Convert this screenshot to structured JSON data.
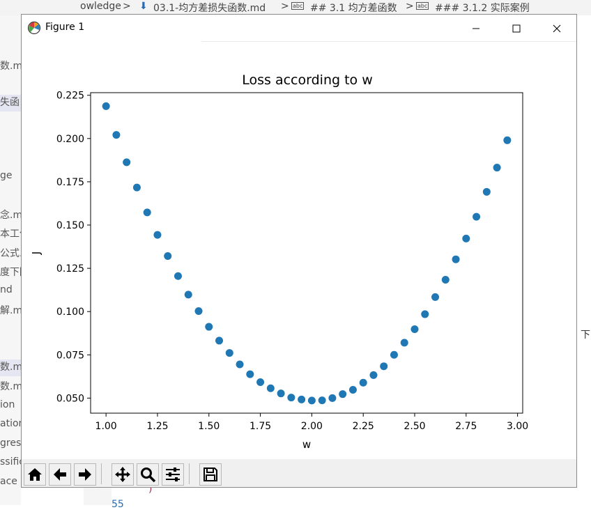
{
  "background": {
    "breadcrumb": [
      {
        "text": "owledge"
      },
      {
        "text": ">"
      },
      {
        "text": "03.1-均方差损失函数.md"
      },
      {
        "text": ">"
      },
      {
        "text": "abc"
      },
      {
        "text": "## 3.1 均方差函数"
      },
      {
        "text": ">"
      },
      {
        "text": "abc"
      },
      {
        "text": "### 3.1.2 实际案例"
      }
    ],
    "sidebar_items": [
      "数.md",
      "失函",
      "ge",
      "念.mo",
      "本工作",
      "公式.m",
      "度下降",
      "nd",
      "解.mo",
      "数.mo",
      "数.mo",
      "ion",
      "ation",
      "gress",
      "ssific",
      "ace"
    ],
    "right_fragment": "下",
    "code_line_number": "55",
    "code_fragment": ")"
  },
  "window": {
    "title": "Figure 1",
    "icons": {
      "app": "matplotlib-icon",
      "minimize": "minimize-icon",
      "maximize": "maximize-icon",
      "close": "close-icon"
    }
  },
  "toolbar": {
    "buttons": [
      {
        "name": "home-icon"
      },
      {
        "name": "back-icon"
      },
      {
        "name": "forward-icon"
      },
      {
        "name": "pan-icon"
      },
      {
        "name": "zoom-icon"
      },
      {
        "name": "subplots-icon"
      },
      {
        "name": "save-icon"
      }
    ]
  },
  "chart_data": {
    "type": "scatter",
    "title": "Loss according to w",
    "xlabel": "w",
    "ylabel": "J",
    "xlim": [
      0.925,
      3.025
    ],
    "ylim": [
      0.0413,
      0.2265
    ],
    "xticks": [
      "1.00",
      "1.25",
      "1.50",
      "1.75",
      "2.00",
      "2.25",
      "2.50",
      "2.75",
      "3.00"
    ],
    "yticks": [
      "0.050",
      "0.075",
      "0.100",
      "0.125",
      "0.150",
      "0.175",
      "0.200",
      "0.225"
    ],
    "marker_color": "#1f77b4",
    "grid": false,
    "x": [
      1.0,
      1.05,
      1.1,
      1.15,
      1.2,
      1.25,
      1.3,
      1.35,
      1.4,
      1.45,
      1.5,
      1.55,
      1.6,
      1.65,
      1.7,
      1.75,
      1.8,
      1.85,
      1.9,
      1.95,
      2.0,
      2.05,
      2.1,
      2.15,
      2.2,
      2.25,
      2.3,
      2.35,
      2.4,
      2.45,
      2.5,
      2.55,
      2.6,
      2.65,
      2.7,
      2.75,
      2.8,
      2.85,
      2.9,
      2.95
    ],
    "y": [
      0.2187,
      0.2021,
      0.1863,
      0.1717,
      0.1573,
      0.1443,
      0.1321,
      0.1205,
      0.1098,
      0.1003,
      0.0912,
      0.0832,
      0.0761,
      0.0695,
      0.0638,
      0.0592,
      0.0557,
      0.0527,
      0.0503,
      0.0492,
      0.0486,
      0.0487,
      0.05,
      0.0523,
      0.0548,
      0.0589,
      0.0633,
      0.0684,
      0.075,
      0.082,
      0.0898,
      0.0985,
      0.1084,
      0.1184,
      0.1302,
      0.1422,
      0.1548,
      0.1692,
      0.1832,
      0.199
    ]
  }
}
